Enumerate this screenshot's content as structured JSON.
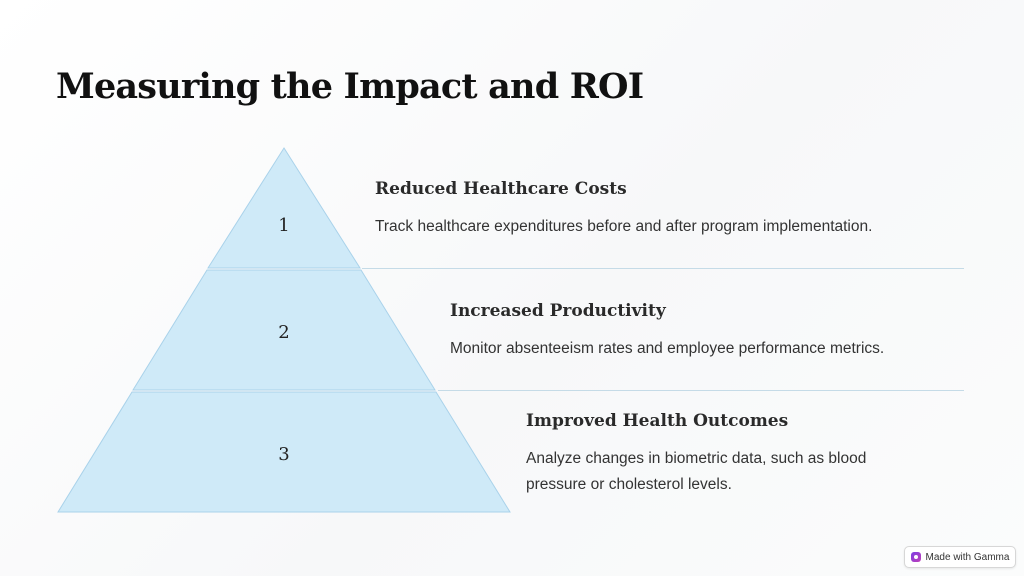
{
  "title": "Measuring the Impact and ROI",
  "tiers": [
    {
      "number": "1",
      "title": "Reduced Healthcare Costs",
      "description": "Track healthcare expenditures before and after program implementation."
    },
    {
      "number": "2",
      "title": "Increased Productivity",
      "description": "Monitor absenteeism rates and employee performance metrics."
    },
    {
      "number": "3",
      "title": "Improved Health Outcomes",
      "description": "Analyze changes in biometric data, such as blood pressure or cholesterol levels."
    }
  ],
  "colors": {
    "tier_fill": "#cfeaf8",
    "tier_stroke": "#a9d2ea",
    "divider": "#c5dbe7",
    "title_text": "#111111"
  },
  "badge": {
    "label": "Made with Gamma",
    "icon": "gamma-logo-icon"
  }
}
